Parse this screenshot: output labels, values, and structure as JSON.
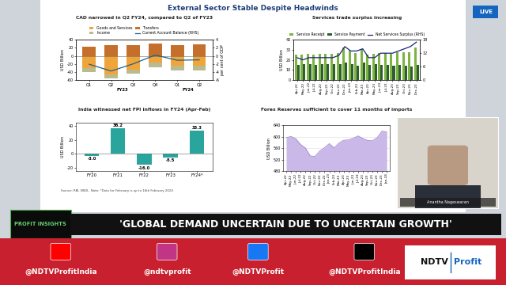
{
  "header": {
    "title": "External Sector Stable Despite Headwinds",
    "badge": "LIVE"
  },
  "chart_data": [
    {
      "type": "bar",
      "title": "CAD narrowed in Q2 FY24, compared to Q2 of FY23",
      "stacked": true,
      "categories": [
        "Q1",
        "Q2",
        "Q3",
        "Q4",
        "Q1",
        "Q2"
      ],
      "groups": [
        "FY23",
        "FY23",
        "FY23",
        "FY23",
        "FY24",
        "FY24"
      ],
      "y_label": "USD Billion",
      "y2_label": "per cent of GDP",
      "ylim": [
        -60,
        40
      ],
      "yticks": [
        -60,
        -40,
        -20,
        0,
        20,
        40
      ],
      "y2lim": [
        -6,
        4
      ],
      "y2ticks": [
        -6,
        -4,
        -2,
        0,
        2,
        4
      ],
      "legend": "upper center",
      "grid": false,
      "series": [
        {
          "name": "Goods and Services",
          "color": "#f0a53a",
          "values": [
            -31,
            -47,
            -34,
            -17,
            -25,
            -25
          ]
        },
        {
          "name": "Income",
          "color": "#b9bb8e",
          "values": [
            -10,
            -10,
            -10,
            -12,
            -11,
            -12
          ]
        },
        {
          "name": "Transfers",
          "color": "#c4702c",
          "values": [
            23,
            26,
            27,
            30,
            27,
            29
          ]
        },
        {
          "name": "Current Account Balance (RHS)",
          "type": "line",
          "axis": "y2",
          "color": "#1f5f8b",
          "marker": "none",
          "line_style": "solid",
          "values": [
            -2.1,
            -3.8,
            -2.0,
            0.2,
            -1.1,
            -1.0
          ]
        }
      ]
    },
    {
      "type": "bar",
      "title": "Services trade surplus increasing",
      "categories": [
        "Apr-22",
        "May-22",
        "Jun-22",
        "Jul-22",
        "Aug-22",
        "Sep-22",
        "Oct-22",
        "Nov-22",
        "Dec-22",
        "Jan-23",
        "Feb-23",
        "Mar-23",
        "Apr-23",
        "May-23",
        "Jun-23",
        "Jul-23",
        "Aug-23",
        "Sep-23",
        "Oct-23",
        "Nov-23",
        "Dec-23"
      ],
      "y_label": "USD Billion",
      "ylim": [
        0,
        40
      ],
      "yticks": [
        0,
        10,
        20,
        30,
        40
      ],
      "y2lim": [
        0,
        18
      ],
      "y2ticks": [
        0,
        6,
        12,
        18
      ],
      "legend": "upper center",
      "grid": false,
      "series": [
        {
          "name": "Service Receipt",
          "color": "#7cb342",
          "values": [
            25,
            25,
            26,
            25,
            26,
            26,
            26,
            27,
            32,
            29,
            27,
            31,
            25,
            26,
            27,
            27,
            26,
            28,
            28,
            28,
            32
          ]
        },
        {
          "name": "Service Payment",
          "color": "#2e5e2e",
          "values": [
            15,
            16,
            16,
            15,
            16,
            16,
            16,
            16,
            17,
            16,
            14,
            17,
            15,
            16,
            15,
            15,
            14,
            15,
            14,
            13,
            15
          ]
        },
        {
          "name": "Net Services Surplus (RHS)",
          "type": "line",
          "axis": "y2",
          "color": "#1a237e",
          "marker": "none",
          "line_style": "solid",
          "values": [
            10,
            9,
            10,
            10,
            10,
            10,
            10,
            11,
            15,
            13,
            13,
            14,
            10,
            10,
            12,
            12,
            12,
            13,
            14,
            15,
            17
          ]
        }
      ]
    },
    {
      "type": "bar",
      "title": "India witnessed net FPI inflows in FY24 (Apr-Feb)",
      "categories": [
        "FY20",
        "FY21",
        "FY22",
        "FY23",
        "FY24*"
      ],
      "values": [
        -3.0,
        36.2,
        -16.0,
        -5.5,
        33.3
      ],
      "value_labels": [
        "-3.0",
        "36.2",
        "-16.0",
        "-5.5",
        "33.3"
      ],
      "data_labels": true,
      "color": "#2aa59e",
      "y_label": "USD Billion",
      "ylim": [
        -25,
        45
      ],
      "yticks": [
        -20,
        0,
        20,
        40
      ],
      "grid": false,
      "note": "Source: RBI, NSDL. Note: *Data for February is up to 16th February 2024"
    },
    {
      "type": "area",
      "title": "Forex Reserves sufficient to cover 11 months of imports",
      "categories": [
        "Apr-22",
        "May-22",
        "Jun-22",
        "Jul-22",
        "Aug-22",
        "Sep-22",
        "Oct-22",
        "Nov-22",
        "Dec-22",
        "Jan-23",
        "Feb-23",
        "Mar-23",
        "Apr-23",
        "May-23",
        "Jun-23",
        "Jul-23",
        "Aug-23",
        "Sep-23",
        "Oct-23",
        "Nov-23",
        "Dec-23",
        "Jan-24"
      ],
      "values": [
        597,
        601,
        593,
        573,
        561,
        533,
        531,
        550,
        562,
        576,
        561,
        578,
        588,
        589,
        595,
        603,
        594,
        587,
        586,
        597,
        620,
        617
      ],
      "color": "#c9b8e8",
      "y_label": "USD Billion",
      "ylim": [
        480,
        640
      ],
      "yticks": [
        480,
        520,
        560,
        600,
        640
      ],
      "grid": true
    }
  ],
  "speaker": {
    "name": "Anantha Nageswaran"
  },
  "banner": {
    "tag": "PROFIT INSIGHTS",
    "headline": "'GLOBAL DEMAND UNCERTAIN DUE TO UNCERTAIN GROWTH'"
  },
  "footer": {
    "handles": [
      "@NDTVProfitIndia",
      "@ndtvprofit",
      "@NDTVProfit",
      "@NDTVProfitIndia"
    ],
    "logo": [
      "NDTV",
      "Profit"
    ]
  }
}
